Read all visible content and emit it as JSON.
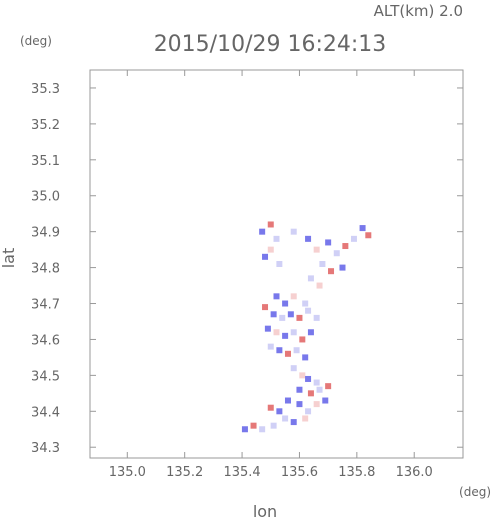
{
  "header": {
    "altitude_label": "ALT(km)",
    "altitude_value": "2.0",
    "timestamp": "2015/10/29 16:24:13"
  },
  "chart_data": {
    "type": "heatmap",
    "title": "2015/10/29 16:24:13",
    "xlabel": "lon",
    "ylabel": "lat",
    "x_unit": "(deg)",
    "y_unit": "(deg)",
    "xlim": [
      134.87,
      136.17
    ],
    "ylim": [
      34.27,
      35.35
    ],
    "x_ticks": [
      135.0,
      135.2,
      135.4,
      135.6,
      135.8,
      136.0
    ],
    "x_tick_labels": [
      "135.0",
      "135.2",
      "135.4",
      "135.6",
      "135.8",
      "136.0"
    ],
    "y_ticks": [
      34.3,
      34.4,
      34.5,
      34.6,
      34.7,
      34.8,
      34.9,
      35.0,
      35.1,
      35.2,
      35.3
    ],
    "y_tick_labels": [
      "34.3",
      "34.4",
      "34.5",
      "34.6",
      "34.7",
      "34.8",
      "34.9",
      "35.0",
      "35.1",
      "35.2",
      "35.3"
    ],
    "grid": false,
    "colors": {
      "positive": "#e06060",
      "negative": "#6060e8",
      "light_negative": "#c8c8f4",
      "light_positive": "#f4c8c8"
    },
    "cells": [
      {
        "lon": 135.5,
        "lat": 34.92,
        "v": 0.6
      },
      {
        "lon": 135.47,
        "lat": 34.9,
        "v": -0.5
      },
      {
        "lon": 135.52,
        "lat": 34.88,
        "v": -0.4
      },
      {
        "lon": 135.5,
        "lat": 34.85,
        "v": 0.4
      },
      {
        "lon": 135.48,
        "lat": 34.83,
        "v": -0.6
      },
      {
        "lon": 135.53,
        "lat": 34.81,
        "v": -0.3
      },
      {
        "lon": 135.58,
        "lat": 34.9,
        "v": -0.2
      },
      {
        "lon": 135.63,
        "lat": 34.88,
        "v": -0.5
      },
      {
        "lon": 135.66,
        "lat": 34.85,
        "v": 0.3
      },
      {
        "lon": 135.7,
        "lat": 34.87,
        "v": -0.6
      },
      {
        "lon": 135.73,
        "lat": 34.84,
        "v": -0.4
      },
      {
        "lon": 135.76,
        "lat": 34.86,
        "v": 0.5
      },
      {
        "lon": 135.79,
        "lat": 34.88,
        "v": -0.3
      },
      {
        "lon": 135.82,
        "lat": 34.91,
        "v": -0.5
      },
      {
        "lon": 135.84,
        "lat": 34.89,
        "v": 0.7
      },
      {
        "lon": 135.68,
        "lat": 34.81,
        "v": -0.4
      },
      {
        "lon": 135.71,
        "lat": 34.79,
        "v": 0.6
      },
      {
        "lon": 135.75,
        "lat": 34.8,
        "v": -0.5
      },
      {
        "lon": 135.64,
        "lat": 34.77,
        "v": -0.3
      },
      {
        "lon": 135.67,
        "lat": 34.75,
        "v": 0.4
      },
      {
        "lon": 135.52,
        "lat": 34.72,
        "v": -0.5
      },
      {
        "lon": 135.55,
        "lat": 34.7,
        "v": -0.7
      },
      {
        "lon": 135.58,
        "lat": 34.72,
        "v": 0.3
      },
      {
        "lon": 135.62,
        "lat": 34.7,
        "v": -0.4
      },
      {
        "lon": 135.48,
        "lat": 34.69,
        "v": 0.6
      },
      {
        "lon": 135.51,
        "lat": 34.67,
        "v": -0.6
      },
      {
        "lon": 135.54,
        "lat": 34.66,
        "v": -0.3
      },
      {
        "lon": 135.57,
        "lat": 34.67,
        "v": -0.8
      },
      {
        "lon": 135.6,
        "lat": 34.66,
        "v": 0.5
      },
      {
        "lon": 135.63,
        "lat": 34.68,
        "v": -0.4
      },
      {
        "lon": 135.66,
        "lat": 34.66,
        "v": -0.2
      },
      {
        "lon": 135.49,
        "lat": 34.63,
        "v": -0.5
      },
      {
        "lon": 135.52,
        "lat": 34.62,
        "v": 0.4
      },
      {
        "lon": 135.55,
        "lat": 34.61,
        "v": -0.6
      },
      {
        "lon": 135.58,
        "lat": 34.62,
        "v": -0.3
      },
      {
        "lon": 135.61,
        "lat": 34.6,
        "v": 0.7
      },
      {
        "lon": 135.64,
        "lat": 34.62,
        "v": -0.5
      },
      {
        "lon": 135.5,
        "lat": 34.58,
        "v": -0.4
      },
      {
        "lon": 135.53,
        "lat": 34.57,
        "v": -0.7
      },
      {
        "lon": 135.56,
        "lat": 34.56,
        "v": 0.5
      },
      {
        "lon": 135.59,
        "lat": 34.57,
        "v": -0.3
      },
      {
        "lon": 135.62,
        "lat": 34.55,
        "v": -0.6
      },
      {
        "lon": 135.58,
        "lat": 34.52,
        "v": -0.4
      },
      {
        "lon": 135.61,
        "lat": 34.5,
        "v": 0.3
      },
      {
        "lon": 135.63,
        "lat": 34.49,
        "v": -0.5
      },
      {
        "lon": 135.66,
        "lat": 34.48,
        "v": -0.3
      },
      {
        "lon": 135.6,
        "lat": 34.46,
        "v": -0.6
      },
      {
        "lon": 135.64,
        "lat": 34.45,
        "v": 0.6
      },
      {
        "lon": 135.67,
        "lat": 34.46,
        "v": -0.4
      },
      {
        "lon": 135.7,
        "lat": 34.47,
        "v": 0.7
      },
      {
        "lon": 135.56,
        "lat": 34.43,
        "v": -0.5
      },
      {
        "lon": 135.6,
        "lat": 34.42,
        "v": -0.7
      },
      {
        "lon": 135.63,
        "lat": 34.4,
        "v": -0.3
      },
      {
        "lon": 135.66,
        "lat": 34.42,
        "v": 0.4
      },
      {
        "lon": 135.69,
        "lat": 34.43,
        "v": -0.6
      },
      {
        "lon": 135.53,
        "lat": 34.4,
        "v": -0.8
      },
      {
        "lon": 135.5,
        "lat": 34.41,
        "v": 0.5
      },
      {
        "lon": 135.55,
        "lat": 34.38,
        "v": -0.4
      },
      {
        "lon": 135.58,
        "lat": 34.37,
        "v": -0.5
      },
      {
        "lon": 135.62,
        "lat": 34.38,
        "v": 0.3
      },
      {
        "lon": 135.44,
        "lat": 34.36,
        "v": 0.6
      },
      {
        "lon": 135.41,
        "lat": 34.35,
        "v": -0.5
      },
      {
        "lon": 135.47,
        "lat": 34.35,
        "v": -0.3
      },
      {
        "lon": 135.51,
        "lat": 34.36,
        "v": -0.4
      }
    ]
  }
}
